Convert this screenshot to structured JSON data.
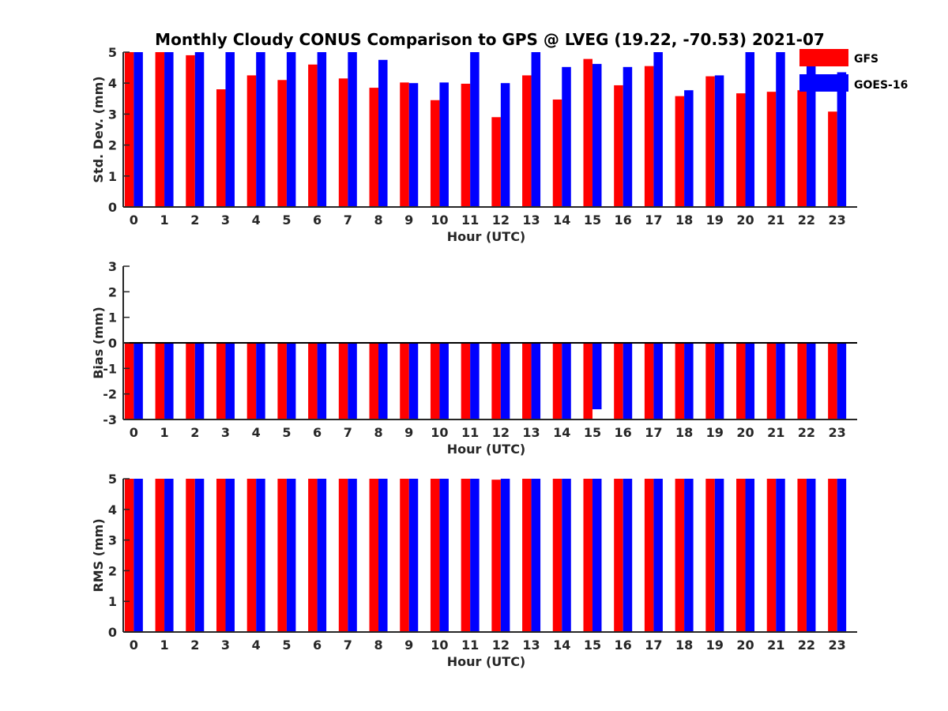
{
  "figure": {
    "title": "Monthly Cloudy CONUS Comparison to GPS @ LVEG (19.22, -70.53) 2021-07"
  },
  "legend": {
    "placement": "top-right",
    "items": [
      {
        "label": "GFS",
        "color": "#ff0000"
      },
      {
        "label": "GOES-16",
        "color": "#0000ff"
      }
    ]
  },
  "chart_data": [
    {
      "type": "bar",
      "id": "std",
      "xlabel": "Hour (UTC)",
      "ylabel": "Std. Dev. (mm)",
      "ylim": [
        0,
        5
      ],
      "yticks": [
        0,
        1,
        2,
        3,
        4,
        5
      ],
      "categories": [
        "0",
        "1",
        "2",
        "3",
        "4",
        "5",
        "6",
        "7",
        "8",
        "9",
        "10",
        "11",
        "12",
        "13",
        "14",
        "15",
        "16",
        "17",
        "18",
        "19",
        "20",
        "21",
        "22",
        "23"
      ],
      "series": [
        {
          "name": "GFS",
          "color": "#ff0000",
          "values": [
            5.0,
            5.0,
            4.9,
            3.8,
            4.25,
            4.1,
            4.6,
            4.15,
            3.85,
            4.02,
            3.45,
            3.98,
            2.9,
            4.25,
            3.47,
            4.78,
            3.93,
            4.55,
            3.58,
            4.22,
            3.67,
            3.72,
            3.77,
            3.08
          ]
        },
        {
          "name": "GOES-16",
          "color": "#0000ff",
          "values": [
            5.0,
            5.0,
            5.0,
            5.0,
            5.0,
            5.0,
            5.0,
            5.0,
            4.75,
            4.0,
            4.02,
            5.0,
            4.0,
            5.0,
            4.52,
            4.62,
            4.52,
            5.0,
            3.77,
            4.25,
            5.0,
            5.0,
            5.0,
            4.35
          ]
        }
      ]
    },
    {
      "type": "bar",
      "id": "bias",
      "xlabel": "Hour (UTC)",
      "ylabel": "Bias (mm)",
      "ylim": [
        -3,
        3
      ],
      "yticks": [
        -3,
        -2,
        -1,
        0,
        1,
        2,
        3
      ],
      "categories": [
        "0",
        "1",
        "2",
        "3",
        "4",
        "5",
        "6",
        "7",
        "8",
        "9",
        "10",
        "11",
        "12",
        "13",
        "14",
        "15",
        "16",
        "17",
        "18",
        "19",
        "20",
        "21",
        "22",
        "23"
      ],
      "series": [
        {
          "name": "GFS",
          "color": "#ff0000",
          "values": [
            -3,
            -3,
            -3,
            -3,
            -3,
            -3,
            -3,
            -3,
            -3,
            -3,
            -3,
            -3,
            -3,
            -3,
            -3,
            -3,
            -3,
            -3,
            -3,
            -3,
            -3,
            -3,
            -3,
            -3
          ]
        },
        {
          "name": "GOES-16",
          "color": "#0000ff",
          "values": [
            -3,
            -3,
            -3,
            -3,
            -3,
            -3,
            -3,
            -3,
            -3,
            -3,
            -3,
            -3,
            -3,
            -3,
            -3,
            -2.6,
            -3,
            -3,
            -3,
            -3,
            -3,
            -3,
            -3,
            -3
          ]
        }
      ]
    },
    {
      "type": "bar",
      "id": "rms",
      "xlabel": "Hour (UTC)",
      "ylabel": "RMS (mm)",
      "ylim": [
        0,
        5
      ],
      "yticks": [
        0,
        1,
        2,
        3,
        4,
        5
      ],
      "categories": [
        "0",
        "1",
        "2",
        "3",
        "4",
        "5",
        "6",
        "7",
        "8",
        "9",
        "10",
        "11",
        "12",
        "13",
        "14",
        "15",
        "16",
        "17",
        "18",
        "19",
        "20",
        "21",
        "22",
        "23"
      ],
      "series": [
        {
          "name": "GFS",
          "color": "#ff0000",
          "values": [
            5,
            5,
            5,
            5,
            5,
            5,
            5,
            5,
            5,
            5,
            5,
            5,
            4.97,
            5,
            5,
            5,
            5,
            5,
            5,
            5,
            5,
            5,
            5,
            5
          ]
        },
        {
          "name": "GOES-16",
          "color": "#0000ff",
          "values": [
            5,
            5,
            5,
            5,
            5,
            5,
            5,
            5,
            5,
            5,
            5,
            5,
            5,
            5,
            5,
            5,
            5,
            5,
            5,
            5,
            5,
            5,
            5,
            5
          ]
        }
      ]
    }
  ]
}
